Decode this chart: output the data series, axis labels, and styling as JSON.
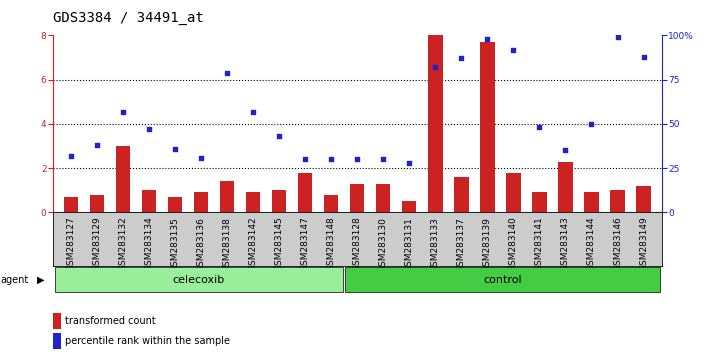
{
  "title": "GDS3384 / 34491_at",
  "samples": [
    "GSM283127",
    "GSM283129",
    "GSM283132",
    "GSM283134",
    "GSM283135",
    "GSM283136",
    "GSM283138",
    "GSM283142",
    "GSM283145",
    "GSM283147",
    "GSM283148",
    "GSM283128",
    "GSM283130",
    "GSM283131",
    "GSM283133",
    "GSM283137",
    "GSM283139",
    "GSM283140",
    "GSM283141",
    "GSM283143",
    "GSM283144",
    "GSM283146",
    "GSM283149"
  ],
  "transformed_count": [
    0.7,
    0.8,
    3.0,
    1.0,
    0.7,
    0.9,
    1.4,
    0.9,
    1.0,
    1.8,
    0.8,
    1.3,
    1.3,
    0.5,
    8.0,
    1.6,
    7.7,
    1.8,
    0.9,
    2.3,
    0.9,
    1.0,
    1.2
  ],
  "percentile_rank": [
    32,
    38,
    57,
    47,
    36,
    31,
    79,
    57,
    43,
    30,
    30,
    30,
    30,
    28,
    82,
    87,
    98,
    92,
    48,
    35,
    50,
    99,
    88
  ],
  "celecoxib_count": 11,
  "control_count": 12,
  "ylim_left": [
    0,
    8
  ],
  "ylim_right": [
    0,
    100
  ],
  "yticks_left": [
    0,
    2,
    4,
    6,
    8
  ],
  "yticks_right": [
    0,
    25,
    50,
    75,
    100
  ],
  "bar_color": "#cc2222",
  "dot_color": "#2222cc",
  "celecoxib_color": "#99ee99",
  "control_color": "#44cc44",
  "agent_bg_color": "#bbbbbb",
  "xlabel_bg_color": "#cccccc",
  "title_fontsize": 10,
  "tick_fontsize": 6.5,
  "agent_fontsize": 8
}
